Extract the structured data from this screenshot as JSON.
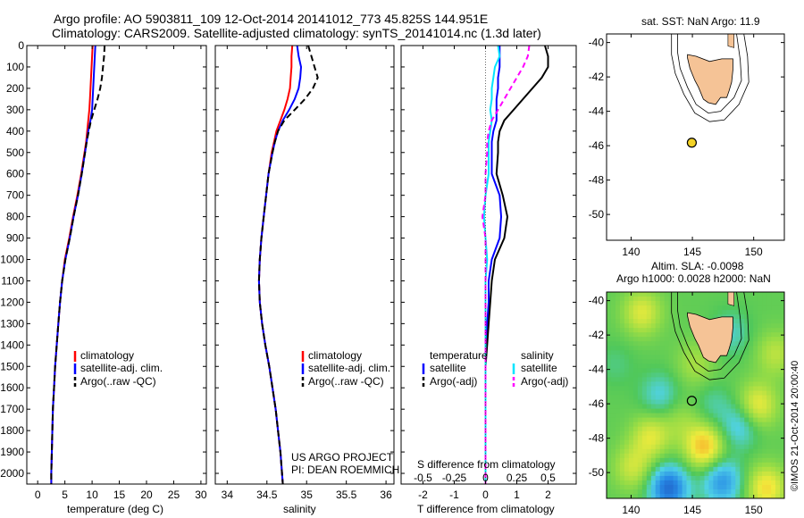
{
  "header": {
    "line1": "Argo profile: AO 5903811_109 12-Oct-2014 20141012_773 45.825S 144.951E",
    "line2": "Climatology: CARS2009. Satellite-adjusted climatology: synTS_20141014.nc (1.3d later)"
  },
  "depth_ticks": [
    "0",
    "100",
    "200",
    "300",
    "400",
    "500",
    "600",
    "700",
    "800",
    "900",
    "1000",
    "1100",
    "1200",
    "1300",
    "1400",
    "1500",
    "1600",
    "1700",
    "1800",
    "1900",
    "2000"
  ],
  "colors": {
    "climatology": "#ff0000",
    "satellite": "#0000ff",
    "argo": "#000000",
    "sat_salinity": "#00e5ff",
    "argo_salinity": "#ff00ff",
    "land": "#f5c396",
    "marker": "#f3d226"
  },
  "chart_data": [
    {
      "type": "line",
      "id": "temperature",
      "xlabel": "temperature (deg C)",
      "xlim": [
        -2,
        31
      ],
      "xticks": [
        "0",
        "5",
        "10",
        "15",
        "20",
        "25",
        "30"
      ],
      "ylim": [
        0,
        2050
      ],
      "y": [
        0,
        50,
        100,
        150,
        200,
        250,
        300,
        350,
        400,
        450,
        500,
        600,
        700,
        800,
        900,
        1000,
        1100,
        1200,
        1300,
        1400,
        1500,
        1600,
        1700,
        1800,
        1900,
        2000,
        2050
      ],
      "series": [
        {
          "name": "climatology",
          "color": "#ff0000",
          "dash": "",
          "values": [
            10.1,
            10.0,
            9.9,
            9.8,
            9.7,
            9.6,
            9.5,
            9.3,
            9.1,
            8.9,
            8.6,
            8.0,
            7.3,
            6.5,
            5.8,
            5.0,
            4.5,
            4.1,
            3.8,
            3.5,
            3.2,
            3.0,
            2.8,
            2.7,
            2.6,
            2.5,
            2.5
          ]
        },
        {
          "name": "satellite-adj. clim.",
          "color": "#0000ff",
          "dash": "",
          "values": [
            10.6,
            10.5,
            10.4,
            10.3,
            10.2,
            10.1,
            10.0,
            9.7,
            9.3,
            9.0,
            8.7,
            8.1,
            7.4,
            6.6,
            5.9,
            5.1,
            4.5,
            4.1,
            3.8,
            3.5,
            3.2,
            3.0,
            2.8,
            2.7,
            2.6,
            2.5,
            2.5
          ]
        },
        {
          "name": "Argo(..raw -QC)",
          "color": "#000000",
          "dash": "7,4",
          "values": [
            12.3,
            12.2,
            12.0,
            11.8,
            11.5,
            11.0,
            10.4,
            9.8,
            9.4,
            9.0,
            8.7,
            8.1,
            7.4,
            6.6,
            5.9,
            5.1,
            4.5,
            4.1,
            3.8,
            3.5,
            3.2,
            3.0,
            2.8,
            2.7,
            2.6,
            2.5,
            2.5
          ]
        }
      ]
    },
    {
      "type": "line",
      "id": "salinity",
      "xlabel": "salinity",
      "xlim": [
        33.85,
        36.1
      ],
      "xticks": [
        "34",
        "34.5",
        "35",
        "35.5",
        "36"
      ],
      "ylim": [
        0,
        2050
      ],
      "y": [
        0,
        50,
        100,
        150,
        200,
        250,
        300,
        350,
        400,
        450,
        500,
        600,
        700,
        800,
        900,
        1000,
        1100,
        1200,
        1300,
        1400,
        1500,
        1600,
        1700,
        1800,
        1900,
        2000,
        2050
      ],
      "series": [
        {
          "name": "climatology",
          "color": "#ff0000",
          "dash": "",
          "values": [
            34.82,
            34.81,
            34.81,
            34.8,
            34.79,
            34.76,
            34.72,
            34.67,
            34.62,
            34.59,
            34.56,
            34.52,
            34.49,
            34.46,
            34.43,
            34.41,
            34.4,
            34.41,
            34.44,
            34.48,
            34.53,
            34.57,
            34.61,
            34.64,
            34.67,
            34.69,
            34.7
          ]
        },
        {
          "name": "satellite-adj. clim.",
          "color": "#0000ff",
          "dash": "",
          "values": [
            34.88,
            34.9,
            34.93,
            34.92,
            34.9,
            34.85,
            34.78,
            34.7,
            34.64,
            34.6,
            34.57,
            34.52,
            34.49,
            34.46,
            34.43,
            34.41,
            34.4,
            34.41,
            34.44,
            34.48,
            34.53,
            34.57,
            34.61,
            34.64,
            34.67,
            34.69,
            34.7
          ]
        },
        {
          "name": "Argo(..raw -QC)",
          "color": "#000000",
          "dash": "7,4",
          "values": [
            35.02,
            35.06,
            35.1,
            35.14,
            35.08,
            34.98,
            34.85,
            34.72,
            34.64,
            34.6,
            34.57,
            34.52,
            34.49,
            34.46,
            34.43,
            34.41,
            34.4,
            34.41,
            34.44,
            34.48,
            34.53,
            34.57,
            34.61,
            34.64,
            34.67,
            34.69,
            34.7
          ]
        }
      ]
    },
    {
      "type": "line",
      "id": "differences",
      "xlabel": "T difference from climatology",
      "xlabel2": "S difference from climatology",
      "xlim": [
        -2.7,
        2.9
      ],
      "xticks": [
        "-2",
        "-1",
        "0",
        "1",
        "2"
      ],
      "xticks_s": [
        "-0.5",
        "-0.25",
        "0",
        "0.25",
        "0.5"
      ],
      "ylim": [
        0,
        2050
      ],
      "y": [
        0,
        50,
        100,
        150,
        200,
        250,
        300,
        350,
        400,
        450,
        500,
        600,
        700,
        800,
        900,
        1000,
        1100,
        1200,
        1300,
        1400,
        1500,
        1600,
        1700,
        1800,
        1900,
        2000,
        2050
      ],
      "series": [
        {
          "name": "satellite",
          "group": "temperature",
          "color": "#0000ff",
          "dash": "",
          "values": [
            0.45,
            0.45,
            0.45,
            0.4,
            0.4,
            0.35,
            0.35,
            0.35,
            0.25,
            0.2,
            0.2,
            0.2,
            0.45,
            0.5,
            0.45,
            0.2,
            0.1,
            0.1,
            0.05,
            0.0,
            0.0,
            0.0,
            0.0,
            0.0,
            0.0,
            0.0,
            0.0
          ]
        },
        {
          "name": "Argo(-adj)",
          "group": "temperature",
          "color": "#000000",
          "dash": "",
          "values": [
            1.9,
            2.0,
            2.0,
            1.8,
            1.5,
            1.2,
            0.9,
            0.6,
            0.45,
            0.4,
            0.4,
            0.35,
            0.55,
            0.7,
            0.6,
            0.3,
            0.2,
            0.15,
            0.1,
            0.05,
            0.0,
            0.0,
            0.0,
            0.0,
            0.0,
            0.0,
            0.0
          ]
        },
        {
          "name": "satellite",
          "group": "salinity",
          "color": "#00e5ff",
          "dash": "",
          "values": [
            0.4,
            0.45,
            0.3,
            0.25,
            0.2,
            0.2,
            0.15,
            0.2,
            0.15,
            0.1,
            0.1,
            0.1,
            0.0,
            -0.05,
            0.0,
            0.05,
            0.0,
            0.0,
            0.0,
            0.0,
            0.0,
            0.0,
            0.0,
            0.0,
            0.0,
            0.0,
            0.0
          ]
        },
        {
          "name": "Argo(-adj)",
          "group": "salinity",
          "color": "#ff00ff",
          "dash": "6,4",
          "values": [
            1.4,
            1.35,
            1.2,
            1.0,
            0.8,
            0.6,
            0.4,
            0.2,
            0.1,
            0.05,
            0.05,
            0.0,
            0.0,
            -0.1,
            0.0,
            0.0,
            0.0,
            0.0,
            0.0,
            0.0,
            0.0,
            0.0,
            0.0,
            0.0,
            0.0,
            0.0,
            0.0
          ]
        }
      ]
    },
    {
      "type": "map",
      "id": "sst-map",
      "title": "sat. SST: NaN Argo: 11.9",
      "xlim": [
        138,
        152.5
      ],
      "ylim": [
        -51.5,
        -39.5
      ],
      "xticks": [
        "140",
        "145",
        "150"
      ],
      "yticks": [
        "-40",
        "-42",
        "-44",
        "-46",
        "-48",
        "-50"
      ],
      "marker": {
        "lon": 144.951,
        "lat": -45.825
      }
    },
    {
      "type": "heatmap",
      "id": "sla-map",
      "title1": "Altim. SLA: -0.0098",
      "title2": "Argo h1000: 0.0028 h2000: NaN",
      "xlim": [
        138,
        152.5
      ],
      "ylim": [
        -51.5,
        -39.5
      ],
      "xticks": [
        "140",
        "145",
        "150"
      ],
      "yticks": [
        "-40",
        "-42",
        "-44",
        "-46",
        "-48",
        "-50"
      ],
      "marker": {
        "lon": 144.951,
        "lat": -45.825
      }
    }
  ],
  "legends": {
    "panel1": [
      "climatology",
      "satellite-adj. clim.",
      "Argo(..raw -QC)"
    ],
    "panel2": [
      "climatology",
      "satellite-adj. clim.",
      "Argo(..raw -QC)"
    ],
    "panel3_temp_title": "temperature",
    "panel3_sal_title": "salinity",
    "panel3_temp": [
      "satellite",
      "Argo(-adj)"
    ],
    "panel3_sal": [
      "satellite",
      "Argo(-adj)"
    ]
  },
  "credits": {
    "project": "US ARGO PROJECT",
    "pi": "PI: DEAN ROEMMICH",
    "imos": "©IMOS 21-Oct-2014 20:00:40"
  }
}
